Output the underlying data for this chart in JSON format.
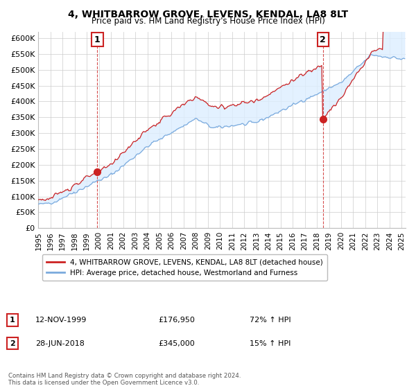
{
  "title": "4, WHITBARROW GROVE, LEVENS, KENDAL, LA8 8LT",
  "subtitle": "Price paid vs. HM Land Registry's House Price Index (HPI)",
  "ylim": [
    0,
    620000
  ],
  "yticks": [
    0,
    50000,
    100000,
    150000,
    200000,
    250000,
    300000,
    350000,
    400000,
    450000,
    500000,
    550000,
    600000
  ],
  "xlim_start": 1995.0,
  "xlim_end": 2025.3,
  "red_color": "#cc2222",
  "blue_color": "#7aaadd",
  "fill_color": "#ddeeff",
  "legend_label_red": "4, WHITBARROW GROVE, LEVENS, KENDAL, LA8 8LT (detached house)",
  "legend_label_blue": "HPI: Average price, detached house, Westmorland and Furness",
  "sale1_date": "12-NOV-1999",
  "sale1_price": "£176,950",
  "sale1_hpi": "72% ↑ HPI",
  "sale1_x": 1999.87,
  "sale1_y": 176950,
  "sale2_date": "28-JUN-2018",
  "sale2_price": "£345,000",
  "sale2_hpi": "15% ↑ HPI",
  "sale2_x": 2018.49,
  "sale2_y": 345000,
  "footer": "Contains HM Land Registry data © Crown copyright and database right 2024.\nThis data is licensed under the Open Government Licence v3.0.",
  "background_color": "#ffffff",
  "grid_color": "#cccccc"
}
